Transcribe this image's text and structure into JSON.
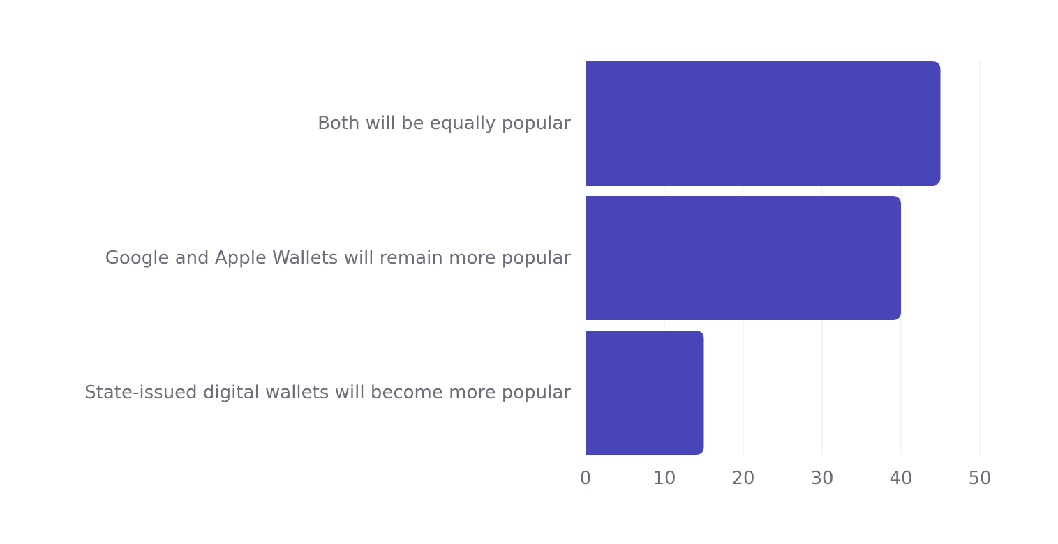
{
  "chart_data": {
    "type": "bar",
    "orientation": "horizontal",
    "title": "",
    "xlabel": "",
    "ylabel": "",
    "categories": [
      "Both will be equally popular",
      "Google and Apple Wallets will remain more popular",
      "State-issued digital wallets will become more popular"
    ],
    "values": [
      45,
      40,
      15
    ],
    "xlim": [
      0,
      50
    ],
    "xticks": [
      0,
      10,
      20,
      30,
      40,
      50
    ],
    "xtick_labels": [
      "0",
      "10",
      "20",
      "30",
      "40",
      "50"
    ],
    "grid": true,
    "bar_color": "#4845b8",
    "grid_color": "#ececf0",
    "label_color": "#6e6c7a"
  }
}
